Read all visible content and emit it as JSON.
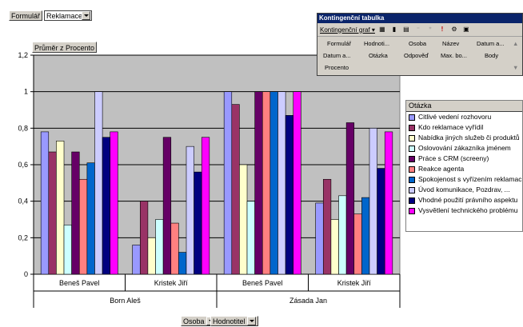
{
  "filter": {
    "field_label": "Formulář",
    "value": "Reklamace"
  },
  "data_field_button": "Průměr z Procento",
  "bottom_fields": [
    "Osoba",
    "Hodnotitel"
  ],
  "pivot_toolbar": {
    "title": "Kontingenční tabulka",
    "chart_menu": "Kontingenční graf ▾",
    "fields": [
      "Formulář",
      "Hodnoti...",
      "Osoba",
      "Název",
      "Datum a...",
      "Datum a...",
      "Otázka",
      "Odpověď",
      "Max. bo...",
      "Body",
      "Procento"
    ]
  },
  "legend": {
    "title": "Otázka"
  },
  "colors": {
    "plot_bg": "#c0c0c0",
    "accent": "#0a246a"
  },
  "chart_data": {
    "type": "bar",
    "ylim": [
      0,
      1.2
    ],
    "yticks": [
      "0",
      "0,2",
      "0,4",
      "0,6",
      "0,8",
      "1",
      "1,2"
    ],
    "grid": true,
    "legend_position": "right",
    "categories": [
      "Beneš Pavel",
      "Kristek Jiří",
      "Beneš Pavel",
      "Kristek Jiří"
    ],
    "groups": [
      {
        "label": "Born Aleš",
        "span": 2
      },
      {
        "label": "Zásada Jan",
        "span": 2
      }
    ],
    "series": [
      {
        "name": "Citlivé vedení rozhovoru",
        "color": "#9999ff",
        "values": [
          0.78,
          0.16,
          1.0,
          0.39
        ]
      },
      {
        "name": "Kdo reklamace vyřídil",
        "color": "#993366",
        "values": [
          0.67,
          0.4,
          0.93,
          0.52
        ]
      },
      {
        "name": "Nabídka jiných služeb či produktů",
        "color": "#ffffcc",
        "values": [
          0.73,
          0.2,
          0.6,
          0.3
        ]
      },
      {
        "name": "Oslovování zákazníka jménem",
        "color": "#ccffff",
        "values": [
          0.27,
          0.3,
          0.4,
          0.43
        ]
      },
      {
        "name": "Práce s CRM (screeny)",
        "color": "#660066",
        "values": [
          0.67,
          0.75,
          1.0,
          0.83
        ]
      },
      {
        "name": "Reakce agenta",
        "color": "#ff8080",
        "values": [
          0.52,
          0.28,
          1.0,
          0.33
        ]
      },
      {
        "name": "Spokojenost s vyřízením reklamac",
        "color": "#0066cc",
        "values": [
          0.61,
          0.12,
          1.0,
          0.42
        ]
      },
      {
        "name": "Úvod komunikace, Pozdrav, ...",
        "color": "#ccccff",
        "values": [
          1.0,
          0.7,
          1.0,
          0.8
        ]
      },
      {
        "name": "Vhodné použití právního aspektu",
        "color": "#000080",
        "values": [
          0.75,
          0.56,
          0.87,
          0.58
        ]
      },
      {
        "name": "Vysvětlení technického problému",
        "color": "#ff00ff",
        "values": [
          0.78,
          0.75,
          1.0,
          0.78
        ]
      }
    ]
  }
}
